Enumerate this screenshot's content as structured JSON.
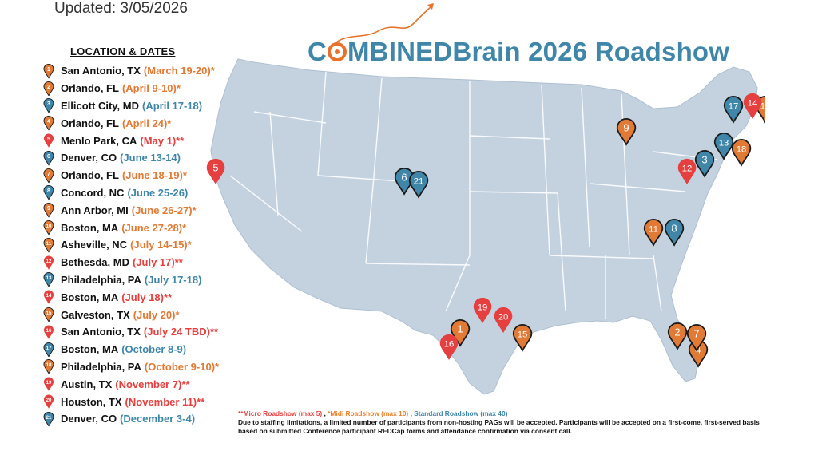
{
  "updated": "Updated: 3/05/2026",
  "title": {
    "prefix": "C",
    "rest": "MBINEDBrain 2026 Roadshow"
  },
  "legend_heading": "LOCATION & DATES",
  "colors": {
    "micro": "#e5403f",
    "midi": "#e07a35",
    "standard": "#3f86a8",
    "map_fill": "#c4d2e0",
    "state_line": "#ffffff"
  },
  "stops": [
    {
      "num": "1",
      "city": "San Antonio, TX",
      "dates": "(March 19-20)*",
      "type": "midi",
      "icon": "pin-outline"
    },
    {
      "num": "2",
      "city": "Orlando, FL",
      "dates": "(April 9-10)*",
      "type": "midi",
      "icon": "pin-outline"
    },
    {
      "num": "3",
      "city": "Ellicott City, MD",
      "dates": "(April 17-18)",
      "type": "standard",
      "icon": "pin-outline"
    },
    {
      "num": "4",
      "city": "Orlando, FL",
      "dates": "(April 24)*",
      "type": "midi",
      "icon": "pin-outline"
    },
    {
      "num": "5",
      "city": "Menlo Park, CA",
      "dates": "(May 1)**",
      "type": "micro",
      "icon": "pin"
    },
    {
      "num": "6",
      "city": "Denver, CO",
      "dates": "(June 13-14)",
      "type": "standard",
      "icon": "pin-outline"
    },
    {
      "num": "7",
      "city": "Orlando, FL",
      "dates": "(June 18-19)*",
      "type": "midi",
      "icon": "pin-outline"
    },
    {
      "num": "8",
      "city": "Concord, NC",
      "dates": "(June 25-26)",
      "type": "standard",
      "icon": "pin-outline"
    },
    {
      "num": "9",
      "city": "Ann Arbor, MI",
      "dates": "(June 26-27)*",
      "type": "midi",
      "icon": "pin-outline"
    },
    {
      "num": "10",
      "city": "Boston, MA",
      "dates": "(June 27-28)*",
      "type": "midi",
      "icon": "pin-outline"
    },
    {
      "num": "11",
      "city": "Asheville, NC",
      "dates": "(July 14-15)*",
      "type": "midi",
      "icon": "pin-outline"
    },
    {
      "num": "12",
      "city": "Bethesda, MD",
      "dates": "(July 17)**",
      "type": "micro",
      "icon": "pin"
    },
    {
      "num": "13",
      "city": "Philadelphia, PA",
      "dates": "(July 17-18)",
      "type": "standard",
      "icon": "pin-outline"
    },
    {
      "num": "14",
      "city": "Boston, MA",
      "dates": "(July 18)**",
      "type": "micro",
      "icon": "pin"
    },
    {
      "num": "15",
      "city": "Galveston, TX",
      "dates": "(July 20)*",
      "type": "midi",
      "icon": "pin-outline"
    },
    {
      "num": "16",
      "city": "San Antonio, TX",
      "dates": "(July 24 TBD)**",
      "type": "micro",
      "icon": "pin"
    },
    {
      "num": "17",
      "city": "Boston, MA",
      "dates": "(October 8-9)",
      "type": "standard",
      "icon": "pin-outline"
    },
    {
      "num": "18",
      "city": "Philadelphia, PA",
      "dates": "(October 9-10)*",
      "type": "midi",
      "icon": "pin-outline"
    },
    {
      "num": "19",
      "city": "Austin, TX",
      "dates": "(November 7)**",
      "type": "micro",
      "icon": "pin"
    },
    {
      "num": "20",
      "city": "Houston, TX",
      "dates": "(November 11)**",
      "type": "micro",
      "icon": "pin"
    },
    {
      "num": "21",
      "city": "Denver, CO",
      "dates": "(December 3-4)",
      "type": "standard",
      "icon": "pin-outline"
    }
  ],
  "footnote": {
    "micro": "**Micro Roadshow (max 5)",
    "sep1": " , ",
    "midi": "*Midi Roadshow (max 10)",
    "sep2": " , ",
    "standard": "Standard Roadshow (max 40)",
    "body": "Due to staffing limitations, a limited number of participants from non-hosting PAGs will be accepted. Participants will be accepted on a first-come, first-served basis based on submitted Conference participant REDCap forms and attendance confirmation via consent call."
  }
}
